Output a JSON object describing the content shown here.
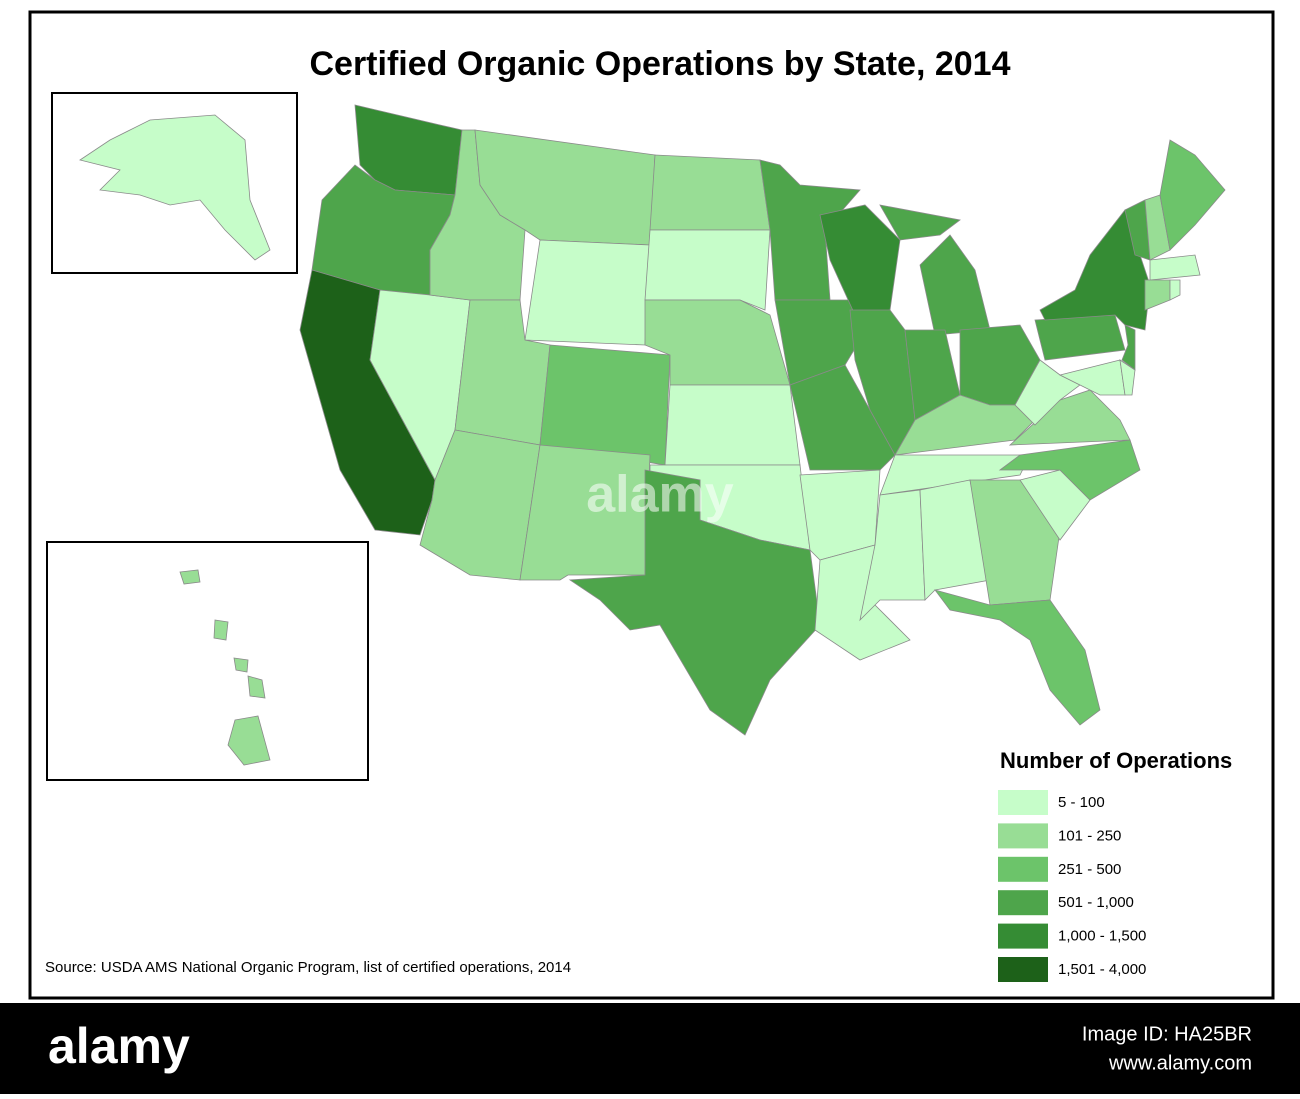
{
  "title": "Certified Organic Operations by State, 2014",
  "legend": {
    "title": "Number of Operations",
    "items": [
      {
        "label": "5 - 100",
        "color": "#c6fdc9"
      },
      {
        "label": "101 - 250",
        "color": "#98dd95"
      },
      {
        "label": "251 - 500",
        "color": "#6cc46a"
      },
      {
        "label": "501 - 1,000",
        "color": "#4ea54b"
      },
      {
        "label": "1,000 - 1,500",
        "color": "#358c34"
      },
      {
        "label": "1,501 - 4,000",
        "color": "#1d6119"
      }
    ]
  },
  "source": "Source: USDA AMS National Organic Program, list of certified operations, 2014",
  "watermark": "alamy",
  "footer": {
    "logo": "alamy",
    "image_id": "Image ID: HA25BR",
    "url": "www.alamy.com"
  }
}
